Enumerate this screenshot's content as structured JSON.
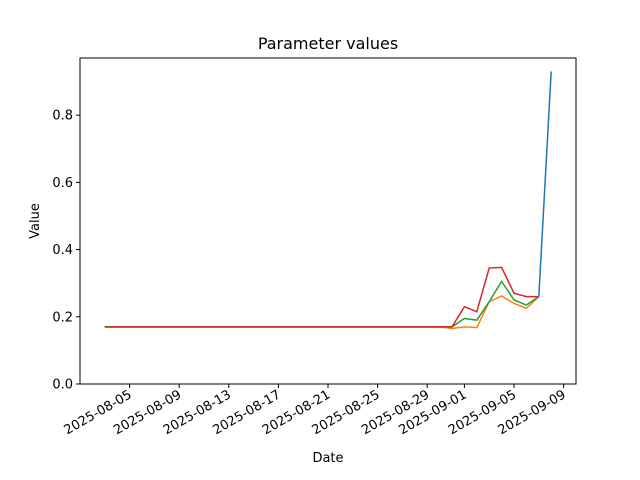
{
  "chart_data": {
    "type": "line",
    "title": "Parameter values",
    "xlabel": "Date",
    "ylabel": "Value",
    "x": [
      "2025-08-03",
      "2025-08-04",
      "2025-08-05",
      "2025-08-06",
      "2025-08-07",
      "2025-08-08",
      "2025-08-09",
      "2025-08-10",
      "2025-08-11",
      "2025-08-12",
      "2025-08-13",
      "2025-08-14",
      "2025-08-15",
      "2025-08-16",
      "2025-08-17",
      "2025-08-18",
      "2025-08-19",
      "2025-08-20",
      "2025-08-21",
      "2025-08-22",
      "2025-08-23",
      "2025-08-24",
      "2025-08-25",
      "2025-08-26",
      "2025-08-27",
      "2025-08-28",
      "2025-08-29",
      "2025-08-30",
      "2025-08-31",
      "2025-09-01",
      "2025-09-02",
      "2025-09-03",
      "2025-09-04",
      "2025-09-05",
      "2025-09-06",
      "2025-09-07",
      "2025-09-08"
    ],
    "series": [
      {
        "color": "#1f77b4",
        "values": [
          0.17,
          0.17,
          0.17,
          0.17,
          0.17,
          0.17,
          0.17,
          0.17,
          0.17,
          0.17,
          0.17,
          0.17,
          0.17,
          0.17,
          0.17,
          0.17,
          0.17,
          0.17,
          0.17,
          0.17,
          0.17,
          0.17,
          0.17,
          0.17,
          0.17,
          0.17,
          0.17,
          0.17,
          null,
          null,
          null,
          null,
          null,
          null,
          null,
          0.26,
          0.93
        ]
      },
      {
        "color": "#ff7f0e",
        "values": [
          0.17,
          0.17,
          0.17,
          0.17,
          0.17,
          0.17,
          0.17,
          0.17,
          0.17,
          0.17,
          0.17,
          0.17,
          0.17,
          0.17,
          0.17,
          0.17,
          0.17,
          0.17,
          0.17,
          0.17,
          0.17,
          0.17,
          0.17,
          0.17,
          0.17,
          0.17,
          0.17,
          0.17,
          0.165,
          0.17,
          0.168,
          0.245,
          0.262,
          0.24,
          0.225,
          0.26,
          null
        ]
      },
      {
        "color": "#2ca02c",
        "values": [
          0.17,
          0.17,
          0.17,
          0.17,
          0.17,
          0.17,
          0.17,
          0.17,
          0.17,
          0.17,
          0.17,
          0.17,
          0.17,
          0.17,
          0.17,
          0.17,
          0.17,
          0.17,
          0.17,
          0.17,
          0.17,
          0.17,
          0.17,
          0.17,
          0.17,
          0.17,
          0.17,
          0.17,
          0.17,
          0.195,
          0.19,
          0.245,
          0.305,
          0.25,
          0.235,
          0.26,
          null
        ]
      },
      {
        "color": "#d62728",
        "values": [
          0.17,
          0.17,
          0.17,
          0.17,
          0.17,
          0.17,
          0.17,
          0.17,
          0.17,
          0.17,
          0.17,
          0.17,
          0.17,
          0.17,
          0.17,
          0.17,
          0.17,
          0.17,
          0.17,
          0.17,
          0.17,
          0.17,
          0.17,
          0.17,
          0.17,
          0.17,
          0.17,
          0.17,
          0.17,
          0.23,
          0.215,
          0.345,
          0.347,
          0.27,
          0.26,
          0.26,
          null
        ]
      }
    ],
    "xlim": [
      "2025-08-01",
      "2025-09-10"
    ],
    "xticks": [
      "2025-08-05",
      "2025-08-09",
      "2025-08-13",
      "2025-08-17",
      "2025-08-21",
      "2025-08-25",
      "2025-08-29",
      "2025-09-01",
      "2025-09-05",
      "2025-09-09"
    ],
    "ylim": [
      0,
      0.97
    ],
    "yticks": [
      {
        "value": 0,
        "label": "0.0"
      },
      {
        "value": 0.2,
        "label": "0.2"
      },
      {
        "value": 0.4,
        "label": "0.4"
      },
      {
        "value": 0.6,
        "label": "0.6"
      },
      {
        "value": 0.8,
        "label": "0.8"
      }
    ]
  }
}
